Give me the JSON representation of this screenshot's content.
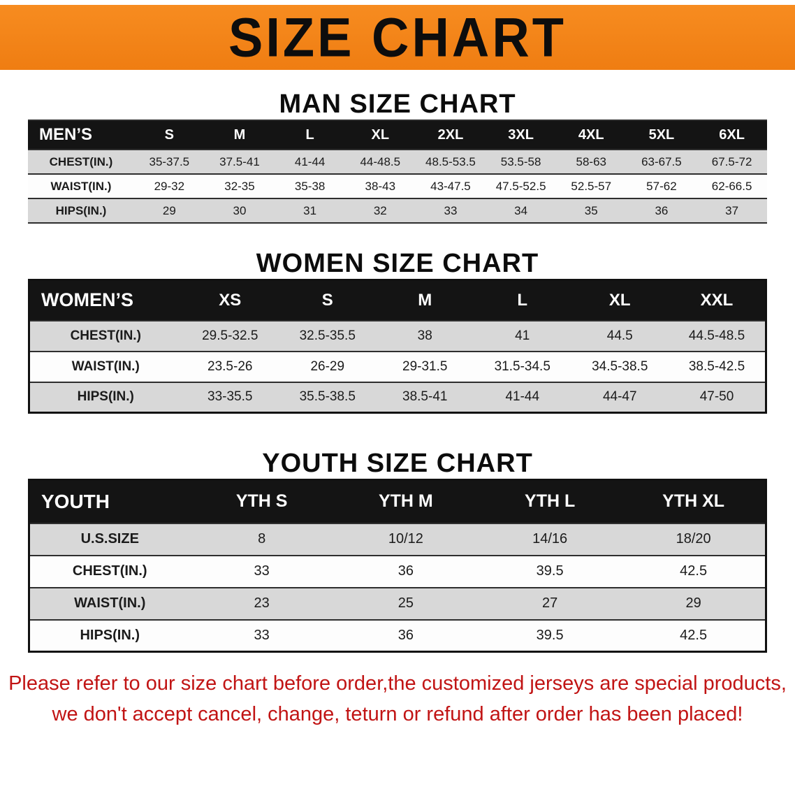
{
  "banner": {
    "title": "SIZE CHART"
  },
  "colors": {
    "banner_bg": "#f5851d",
    "table_header_bg": "#141414",
    "row_gray": "#d8d8d8",
    "row_white": "#fdfdfd",
    "disclaimer_red": "#c11414"
  },
  "sections": [
    {
      "id": "men",
      "title": "MAN SIZE CHART",
      "table": {
        "header": [
          "MEN’S",
          "S",
          "M",
          "L",
          "XL",
          "2XL",
          "3XL",
          "4XL",
          "5XL",
          "6XL"
        ],
        "rows": [
          {
            "label": "CHEST(IN.)",
            "values": [
              "35-37.5",
              "37.5-41",
              "41-44",
              "44-48.5",
              "48.5-53.5",
              "53.5-58",
              "58-63",
              "63-67.5",
              "67.5-72"
            ]
          },
          {
            "label": "WAIST(IN.)",
            "values": [
              "29-32",
              "32-35",
              "35-38",
              "38-43",
              "43-47.5",
              "47.5-52.5",
              "52.5-57",
              "57-62",
              "62-66.5"
            ]
          },
          {
            "label": "HIPS(IN.)",
            "values": [
              "29",
              "30",
              "31",
              "32",
              "33",
              "34",
              "35",
              "36",
              "37"
            ]
          }
        ]
      }
    },
    {
      "id": "women",
      "title": "WOMEN SIZE CHART",
      "table": {
        "header": [
          "WOMEN’S",
          "XS",
          "S",
          "M",
          "L",
          "XL",
          "XXL"
        ],
        "rows": [
          {
            "label": "CHEST(IN.)",
            "values": [
              "29.5-32.5",
              "32.5-35.5",
              "38",
              "41",
              "44.5",
              "44.5-48.5"
            ]
          },
          {
            "label": "WAIST(IN.)",
            "values": [
              "23.5-26",
              "26-29",
              "29-31.5",
              "31.5-34.5",
              "34.5-38.5",
              "38.5-42.5"
            ]
          },
          {
            "label": "HIPS(IN.)",
            "values": [
              "33-35.5",
              "35.5-38.5",
              "38.5-41",
              "41-44",
              "44-47",
              "47-50"
            ]
          }
        ]
      }
    },
    {
      "id": "youth",
      "title": "YOUTH SIZE CHART",
      "table": {
        "header": [
          "YOUTH",
          "YTH S",
          "YTH M",
          "YTH L",
          "YTH XL"
        ],
        "rows": [
          {
            "label": "U.S.SIZE",
            "values": [
              "8",
              "10/12",
              "14/16",
              "18/20"
            ]
          },
          {
            "label": "CHEST(IN.)",
            "values": [
              "33",
              "36",
              "39.5",
              "42.5"
            ]
          },
          {
            "label": "WAIST(IN.)",
            "values": [
              "23",
              "25",
              "27",
              "29"
            ]
          },
          {
            "label": "HIPS(IN.)",
            "values": [
              "33",
              "36",
              "39.5",
              "42.5"
            ]
          }
        ]
      }
    }
  ],
  "disclaimer": {
    "line1": "Please refer to our size chart before order,the customized jerseys are special products,",
    "line2": "we don't accept cancel, change, teturn or refund after order has been placed!"
  }
}
